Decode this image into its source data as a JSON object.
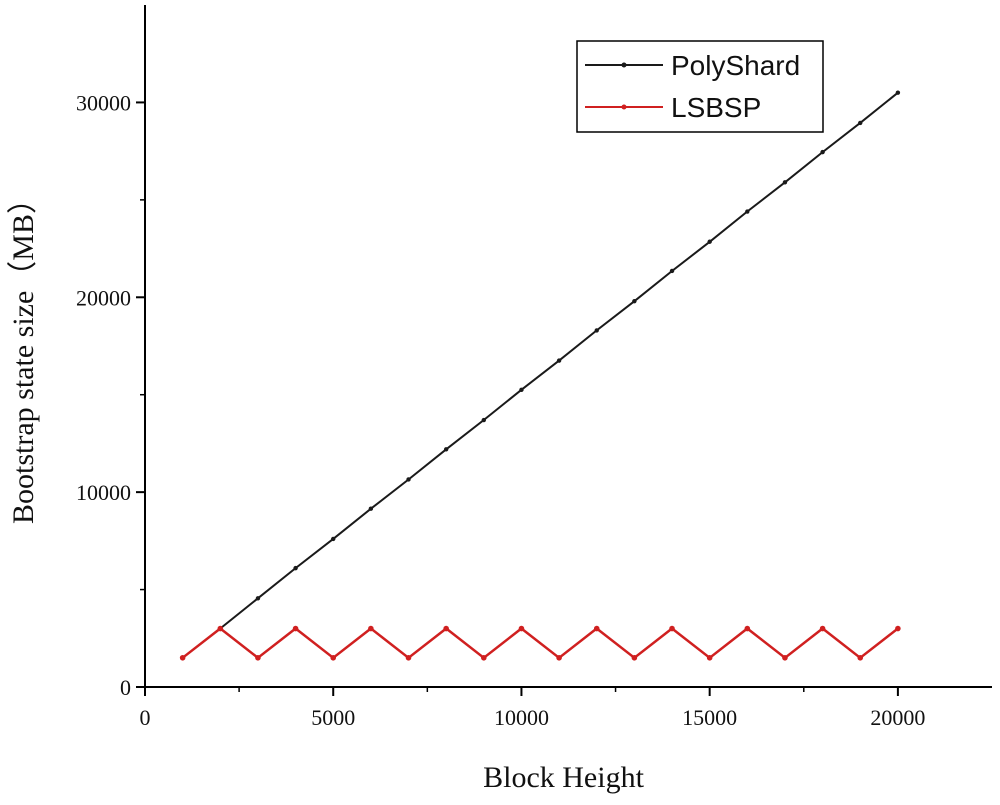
{
  "chart_data": {
    "type": "line",
    "xlabel": "Block Height",
    "ylabel": "Bootstrap state size（MB）",
    "xlim": [
      0,
      22500
    ],
    "ylim": [
      0,
      35000
    ],
    "xticks": [
      0,
      5000,
      10000,
      15000,
      20000
    ],
    "yticks": [
      0,
      10000,
      20000,
      30000
    ],
    "legend_position": "top-right",
    "series": [
      {
        "name": "PolyShard",
        "color": "#1a1a1a",
        "x": [
          2000,
          3000,
          4000,
          5000,
          6000,
          7000,
          8000,
          9000,
          10000,
          11000,
          12000,
          13000,
          14000,
          15000,
          16000,
          17000,
          18000,
          19000,
          20000
        ],
        "y": [
          3000,
          4550,
          6100,
          7600,
          9150,
          10650,
          12200,
          13700,
          15250,
          16750,
          18300,
          19800,
          21350,
          22850,
          24400,
          25900,
          27450,
          28950,
          30500
        ]
      },
      {
        "name": "LSBSP",
        "color": "#d02020",
        "x": [
          1000,
          2000,
          3000,
          4000,
          5000,
          6000,
          7000,
          8000,
          9000,
          10000,
          11000,
          12000,
          13000,
          14000,
          15000,
          16000,
          17000,
          18000,
          19000,
          20000
        ],
        "y": [
          1500,
          3000,
          1500,
          3000,
          1500,
          3000,
          1500,
          3000,
          1500,
          3000,
          1500,
          3000,
          1500,
          3000,
          1500,
          3000,
          1500,
          3000,
          1500,
          3000
        ]
      }
    ]
  }
}
